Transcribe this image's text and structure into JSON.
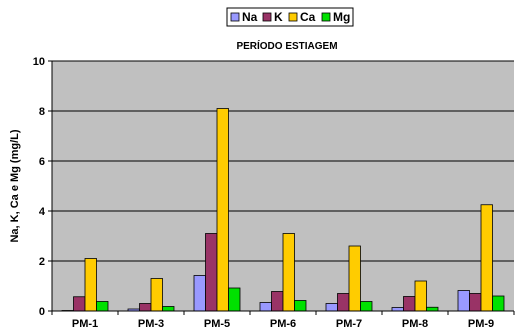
{
  "chart_data": {
    "type": "bar",
    "title": "PERÍODO ESTIAGEM",
    "xlabel": "",
    "ylabel": "Na, K, Ca e Mg (mg/L)",
    "ylim": [
      0,
      10
    ],
    "yticks": [
      0,
      2,
      4,
      6,
      8,
      10
    ],
    "grid": true,
    "legend_position": "top-center",
    "categories": [
      "PM-1",
      "PM-3",
      "PM-5",
      "PM-6",
      "PM-7",
      "PM-8",
      "PM-9"
    ],
    "series": [
      {
        "name": "Na",
        "color": "#9999FF",
        "values": [
          0.02,
          0.08,
          1.42,
          0.34,
          0.3,
          0.14,
          0.82
        ]
      },
      {
        "name": "K",
        "color": "#993366",
        "values": [
          0.57,
          0.3,
          3.1,
          0.78,
          0.7,
          0.58,
          0.7
        ]
      },
      {
        "name": "Ca",
        "color": "#FFCC00",
        "values": [
          2.1,
          1.3,
          8.1,
          3.1,
          2.6,
          1.2,
          4.25
        ]
      },
      {
        "name": "Mg",
        "color": "#00E100",
        "values": [
          0.38,
          0.18,
          0.92,
          0.42,
          0.38,
          0.15,
          0.6
        ]
      }
    ]
  },
  "style": {
    "plot_background": "#C0C0C0",
    "grid_color": "#000000",
    "axis_color": "#000000"
  }
}
